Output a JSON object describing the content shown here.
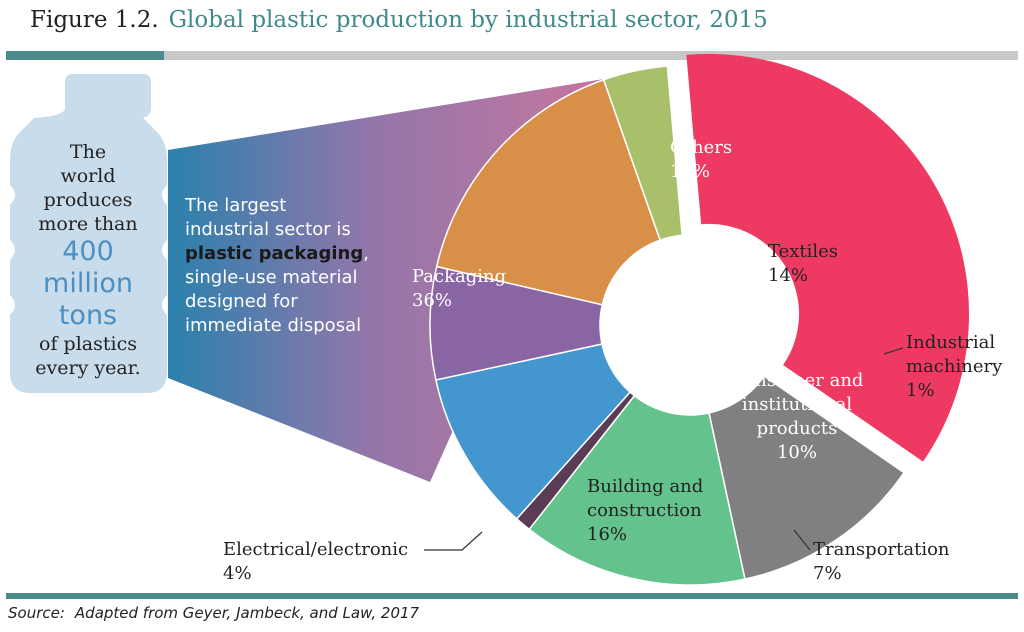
{
  "figure": {
    "number": "Figure  1.2.",
    "title": "Global plastic production by industrial sector, 2015",
    "accent_color": "#3f8a8a"
  },
  "bottle": {
    "line1": "The",
    "line2": "world",
    "line3": "produces",
    "line4": "more than",
    "big1": "400",
    "big2": "million",
    "big3": "tons",
    "line5": "of plastics",
    "line6": "every year."
  },
  "callout": {
    "line1": "The largest",
    "line2": "industrial sector is",
    "bold": "plastic packaging",
    "comma": ",",
    "line4": "single-use material",
    "line5": "designed for",
    "line6": "immediate disposal"
  },
  "source": {
    "label": "Source:",
    "text": "Adapted from Geyer, Jambeck, and Law, 2017"
  },
  "chart_data": {
    "type": "pie",
    "donut": true,
    "title": "Global plastic production by industrial sector, 2015",
    "unit": "%",
    "slices": [
      {
        "name": "Packaging",
        "lines": [
          "Packaging",
          "36%"
        ],
        "value": 36,
        "color": "#ee3a62",
        "exploded": true
      },
      {
        "name": "Others",
        "lines": [
          "Others",
          "12%"
        ],
        "value": 12,
        "color": "#808083"
      },
      {
        "name": "Textiles",
        "lines": [
          "Textiles",
          "14%"
        ],
        "value": 14,
        "color": "#64c38c"
      },
      {
        "name": "Industrial machinery",
        "lines": [
          "Industrial",
          "machinery",
          "1%"
        ],
        "value": 1,
        "color": "#5a3c55",
        "outside": true
      },
      {
        "name": "Consumer and institutional products",
        "lines": [
          "Consumer and",
          "institutional",
          "products",
          "10%"
        ],
        "value": 10,
        "color": "#4496cf"
      },
      {
        "name": "Transportation",
        "lines": [
          "Transportation",
          "7%"
        ],
        "value": 7,
        "color": "#8a65a3",
        "outside": true
      },
      {
        "name": "Building and construction",
        "lines": [
          "Building and",
          "construction",
          "16%"
        ],
        "value": 16,
        "color": "#d88f47"
      },
      {
        "name": "Electrical/electronic",
        "lines": [
          "Electrical/electronic",
          "4%"
        ],
        "value": 4,
        "color": "#a9c06a",
        "outside": true
      }
    ]
  }
}
